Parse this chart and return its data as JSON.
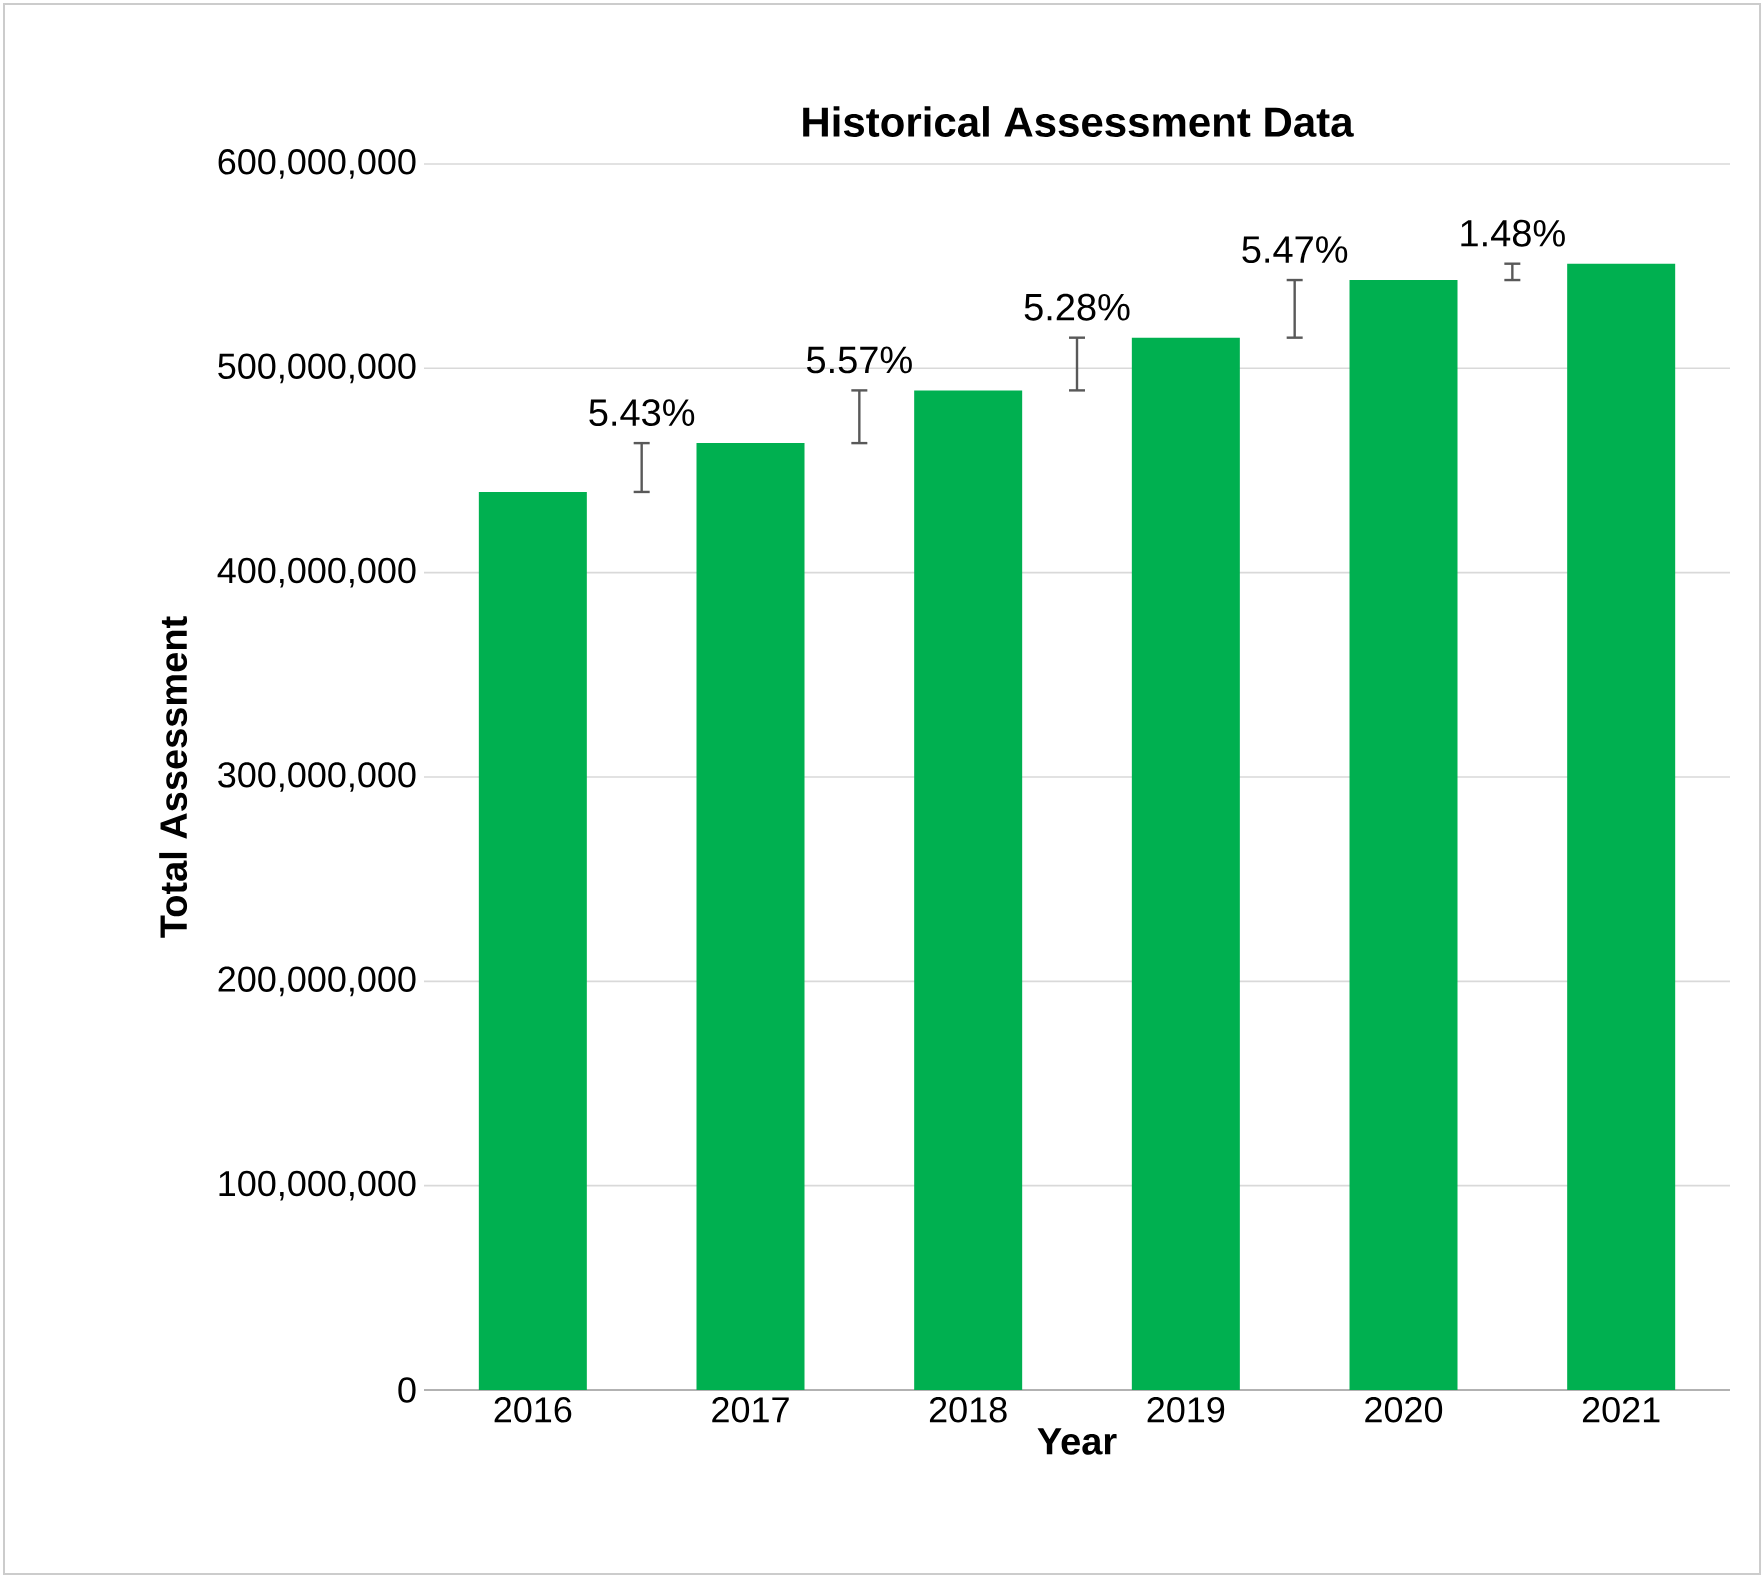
{
  "chart_data": {
    "type": "bar",
    "title": "Historical Assessment Data",
    "xlabel": "Year",
    "ylabel": "Total Assessment",
    "categories": [
      "2016",
      "2017",
      "2018",
      "2019",
      "2020",
      "2021"
    ],
    "values": [
      439500000,
      463400000,
      489200000,
      515000000,
      543200000,
      551200000
    ],
    "color": "#00b050",
    "ylim": [
      0,
      600000000
    ],
    "yticks": [
      {
        "value": 0,
        "label": "0"
      },
      {
        "value": 100000000,
        "label": "100,000,000"
      },
      {
        "value": 200000000,
        "label": "200,000,000"
      },
      {
        "value": 300000000,
        "label": "300,000,000"
      },
      {
        "value": 400000000,
        "label": "400,000,000"
      },
      {
        "value": 500000000,
        "label": "500,000,000"
      },
      {
        "value": 600000000,
        "label": "600,000,000"
      }
    ],
    "grid": "y",
    "annotations": [
      {
        "text": "5.43%",
        "x": "2017",
        "y": 463400000
      },
      {
        "text": "5.57%",
        "x": "2018",
        "y": 489200000
      },
      {
        "text": "5.28%",
        "x": "2019",
        "y": 515000000
      },
      {
        "text": "5.47%",
        "x": "2020",
        "y": 543200000
      },
      {
        "text": "1.48%",
        "x": "2021",
        "y": 551200000
      }
    ]
  }
}
